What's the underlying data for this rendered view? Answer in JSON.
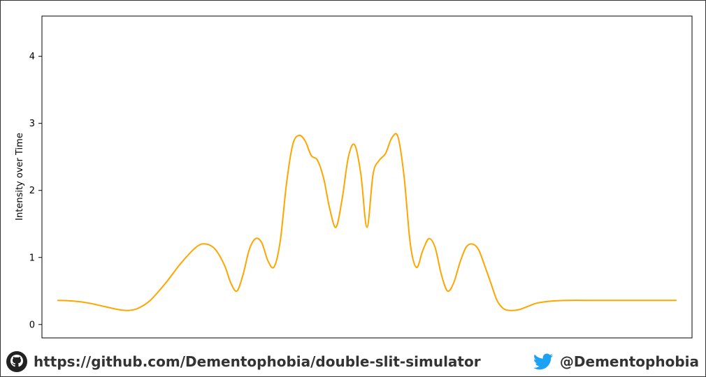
{
  "chart_data": {
    "type": "line",
    "title": "",
    "xlabel": "",
    "ylabel": "Intensity over Time",
    "ylim": [
      -0.2,
      4.6
    ],
    "yticks": [
      0,
      1,
      2,
      3,
      4
    ],
    "xlim": [
      -1.05,
      1.05
    ],
    "grid": false,
    "series": [
      {
        "color": "#FFA500",
        "x": [
          -1.0,
          -0.95,
          -0.9,
          -0.85,
          -0.8,
          -0.77,
          -0.74,
          -0.7,
          -0.65,
          -0.6,
          -0.55,
          -0.52,
          -0.49,
          -0.46,
          -0.44,
          -0.42,
          -0.4,
          -0.38,
          -0.36,
          -0.34,
          -0.32,
          -0.3,
          -0.28,
          -0.26,
          -0.24,
          -0.22,
          -0.2,
          -0.18,
          -0.16,
          -0.14,
          -0.12,
          -0.1,
          -0.08,
          -0.06,
          -0.04,
          -0.02,
          0.0,
          0.02,
          0.04,
          0.06,
          0.08,
          0.1,
          0.12,
          0.14,
          0.16,
          0.18,
          0.2,
          0.22,
          0.24,
          0.26,
          0.28,
          0.3,
          0.32,
          0.34,
          0.36,
          0.38,
          0.4,
          0.42,
          0.44,
          0.46,
          0.49,
          0.52,
          0.55,
          0.6,
          0.65,
          0.7,
          0.74,
          0.77,
          0.8,
          0.85,
          0.9,
          0.95,
          1.0
        ],
        "y": [
          0.36,
          0.35,
          0.32,
          0.27,
          0.22,
          0.21,
          0.24,
          0.36,
          0.62,
          0.92,
          1.16,
          1.2,
          1.12,
          0.88,
          0.62,
          0.5,
          0.75,
          1.12,
          1.28,
          1.22,
          0.95,
          0.86,
          1.25,
          2.1,
          2.68,
          2.82,
          2.74,
          2.52,
          2.45,
          2.18,
          1.72,
          1.45,
          1.88,
          2.5,
          2.68,
          2.25,
          1.45,
          2.25,
          2.45,
          2.55,
          2.78,
          2.8,
          2.2,
          1.2,
          0.85,
          1.1,
          1.28,
          1.15,
          0.75,
          0.5,
          0.62,
          0.92,
          1.15,
          1.2,
          1.12,
          0.88,
          0.62,
          0.36,
          0.24,
          0.21,
          0.22,
          0.27,
          0.32,
          0.35,
          0.36,
          0.36,
          0.36,
          0.36,
          0.36,
          0.36,
          0.36,
          0.36,
          0.36
        ]
      }
    ]
  },
  "footer": {
    "github_icon": "github-icon",
    "github_text": "https://github.com/Dementophobia/double-slit-simulator",
    "twitter_icon": "twitter-icon",
    "twitter_text": "@Dementophobia",
    "twitter_color": "#1DA1F2"
  }
}
